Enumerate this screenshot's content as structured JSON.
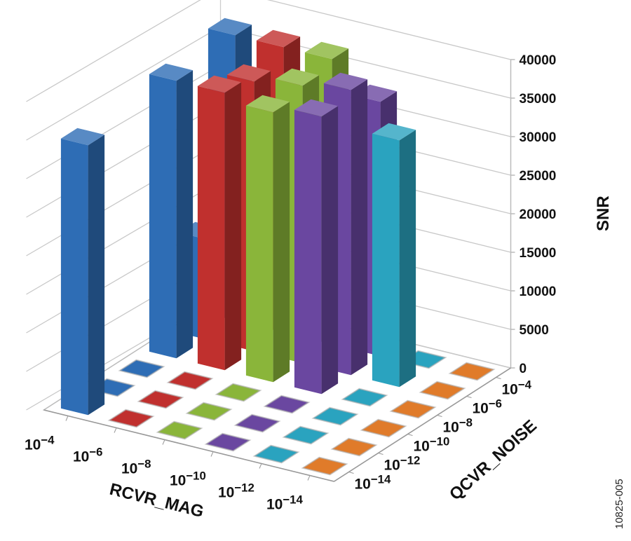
{
  "chart_data": {
    "type": "bar3d",
    "zlabel": "SNR",
    "xlabel": "RCVR_MAG",
    "ylabel": "QCVR_NOISE",
    "figure_id": "10825-005",
    "zlim": [
      0,
      40000
    ],
    "z_ticks": [
      "0",
      "5000",
      "10000",
      "15000",
      "20000",
      "25000",
      "30000",
      "35000",
      "40000"
    ],
    "rcvr_mag": [
      {
        "base": "10",
        "exp": "−4"
      },
      {
        "base": "10",
        "exp": "−6"
      },
      {
        "base": "10",
        "exp": "−8"
      },
      {
        "base": "10",
        "exp": "−10"
      },
      {
        "base": "10",
        "exp": "−12"
      },
      {
        "base": "10",
        "exp": "−14"
      }
    ],
    "qcvr_noise": [
      {
        "base": "10",
        "exp": "−4"
      },
      {
        "base": "10",
        "exp": "−6"
      },
      {
        "base": "10",
        "exp": "−8"
      },
      {
        "base": "10",
        "exp": "−10"
      },
      {
        "base": "10",
        "exp": "−12"
      },
      {
        "base": "10",
        "exp": "−14"
      }
    ],
    "series_colors": [
      "#2e6db5",
      "#c0302e",
      "#8ab53a",
      "#6a47a0",
      "#2aa3bf",
      "#e07b2a"
    ],
    "values_by_rcvr_then_qcvr": [
      [
        37000,
        13000,
        36000,
        0,
        0,
        35000
      ],
      [
        37000,
        35000,
        36000,
        0,
        0,
        0
      ],
      [
        37000,
        36000,
        35000,
        0,
        0,
        0
      ],
      [
        33000,
        37000,
        36000,
        0,
        0,
        0
      ],
      [
        0,
        32000,
        0,
        0,
        0,
        0
      ],
      [
        0,
        0,
        0,
        0,
        0,
        0
      ]
    ]
  }
}
